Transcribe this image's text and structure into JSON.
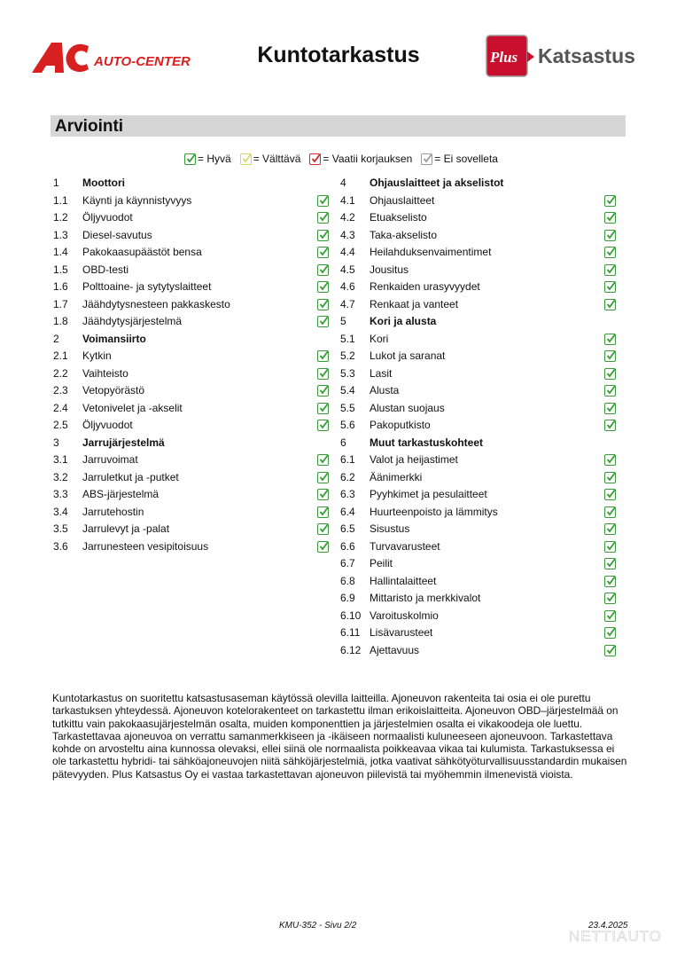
{
  "header": {
    "title": "Kuntotarkastus",
    "logo_left": "AC AUTO-CENTER",
    "logo_right": "Plus Katsastus"
  },
  "section_title": "Arviointi",
  "legend": [
    {
      "label": "= Hyvä",
      "color": "#3a9a3a"
    },
    {
      "label": "= Välttävä",
      "color": "#d7d76a"
    },
    {
      "label": "= Vaatii korjauksen",
      "color": "#d02a2a"
    },
    {
      "label": "= Ei sovelleta",
      "color": "#9a9a9a"
    }
  ],
  "columns": [
    [
      {
        "n": "1",
        "l": "Moottori",
        "h": true
      },
      {
        "n": "1.1",
        "l": "Käynti ja käynnistyvyys",
        "s": "good"
      },
      {
        "n": "1.2",
        "l": "Öljyvuodot",
        "s": "good"
      },
      {
        "n": "1.3",
        "l": "Diesel-savutus",
        "s": "good"
      },
      {
        "n": "1.4",
        "l": "Pakokaasupäästöt bensa",
        "s": "good"
      },
      {
        "n": "1.5",
        "l": "OBD-testi",
        "s": "good"
      },
      {
        "n": "1.6",
        "l": "Polttoaine- ja sytytyslaitteet",
        "s": "good"
      },
      {
        "n": "1.7",
        "l": "Jäähdytysnesteen pakkaskesto",
        "s": "good"
      },
      {
        "n": "1.8",
        "l": "Jäähdytysjärjestelmä",
        "s": "good"
      },
      {
        "n": "2",
        "l": "Voimansiirto",
        "h": true
      },
      {
        "n": "2.1",
        "l": "Kytkin",
        "s": "good"
      },
      {
        "n": "2.2",
        "l": "Vaihteisto",
        "s": "good"
      },
      {
        "n": "2.3",
        "l": "Vetopyörästö",
        "s": "good"
      },
      {
        "n": "2.4",
        "l": "Vetonivelet ja -akselit",
        "s": "good"
      },
      {
        "n": "2.5",
        "l": "Öljyvuodot",
        "s": "good"
      },
      {
        "n": "3",
        "l": "Jarrujärjestelmä",
        "h": true
      },
      {
        "n": "3.1",
        "l": "Jarruvoimat",
        "s": "good"
      },
      {
        "n": "3.2",
        "l": "Jarruletkut ja -putket",
        "s": "good"
      },
      {
        "n": "3.3",
        "l": "ABS-järjestelmä",
        "s": "good"
      },
      {
        "n": "3.4",
        "l": "Jarrutehostin",
        "s": "good"
      },
      {
        "n": "3.5",
        "l": "Jarrulevyt ja -palat",
        "s": "good"
      },
      {
        "n": "3.6",
        "l": "Jarrunesteen vesipitoisuus",
        "s": "good"
      }
    ],
    [
      {
        "n": "4",
        "l": "Ohjauslaitteet ja akselistot",
        "h": true
      },
      {
        "n": "4.1",
        "l": "Ohjauslaitteet",
        "s": "good"
      },
      {
        "n": "4.2",
        "l": "Etuakselisto",
        "s": "good"
      },
      {
        "n": "4.3",
        "l": "Taka-akselisto",
        "s": "good"
      },
      {
        "n": "4.4",
        "l": "Heilahduksenvaimentimet",
        "s": "good"
      },
      {
        "n": "4.5",
        "l": "Jousitus",
        "s": "good"
      },
      {
        "n": "4.6",
        "l": "Renkaiden urasyvyydet",
        "s": "good"
      },
      {
        "n": "4.7",
        "l": "Renkaat ja vanteet",
        "s": "good"
      },
      {
        "n": "5",
        "l": "Kori ja alusta",
        "h": true
      },
      {
        "n": "5.1",
        "l": "Kori",
        "s": "good"
      },
      {
        "n": "5.2",
        "l": "Lukot ja saranat",
        "s": "good"
      },
      {
        "n": "5.3",
        "l": "Lasit",
        "s": "good"
      },
      {
        "n": "5.4",
        "l": "Alusta",
        "s": "good"
      },
      {
        "n": "5.5",
        "l": "Alustan suojaus",
        "s": "good"
      },
      {
        "n": "5.6",
        "l": "Pakoputkisto",
        "s": "good"
      },
      {
        "n": "6",
        "l": "Muut tarkastuskohteet",
        "h": true
      },
      {
        "n": "6.1",
        "l": "Valot ja heijastimet",
        "s": "good"
      },
      {
        "n": "6.2",
        "l": "Äänimerkki",
        "s": "good"
      },
      {
        "n": "6.3",
        "l": "Pyyhkimet ja pesulaitteet",
        "s": "good"
      },
      {
        "n": "6.4",
        "l": "Huurteenpoisto ja lämmitys",
        "s": "good"
      },
      {
        "n": "6.5",
        "l": "Sisustus",
        "s": "good"
      },
      {
        "n": "6.6",
        "l": "Turvavarusteet",
        "s": "good"
      },
      {
        "n": "6.7",
        "l": "Peilit",
        "s": "good"
      },
      {
        "n": "6.8",
        "l": "Hallintalaitteet",
        "s": "good"
      },
      {
        "n": "6.9",
        "l": "Mittaristo ja merkkivalot",
        "s": "good"
      },
      {
        "n": "6.10",
        "l": "Varoituskolmio",
        "s": "good"
      },
      {
        "n": "6.11",
        "l": "Lisävarusteet",
        "s": "good"
      },
      {
        "n": "6.12",
        "l": "Ajettavuus",
        "s": "good"
      }
    ]
  ],
  "disclaimer": "Kuntotarkastus on suoritettu katsastusaseman käytössä olevilla laitteilla. Ajoneuvon rakenteita tai osia ei ole purettu tarkastuksen yhteydessä. Ajoneuvon kotelorakenteet on tarkastettu ilman erikoislaitteita. Ajoneuvon OBD–järjestelmää on tutkittu vain pakokaasujärjestelmän osalta, muiden komponenttien ja järjestelmien osalta ei vikakoodeja ole luettu. Tarkastettavaa ajoneuvoa on verrattu samanmerkkiseen ja -ikäiseen normaalisti kuluneeseen ajoneuvoon. Tarkastettava kohde on arvosteltu aina kunnossa olevaksi, ellei siinä ole normaalista poikkeavaa vikaa tai kulumista. Tarkastuksessa ei ole tarkastettu hybridi- tai sähköajoneuvojen niitä sähköjärjestelmiä, jotka vaativat sähkötyöturvallisuusstandardin mukaisen pätevyyden. Plus Katsastus Oy ei vastaa tarkastettavan ajoneuvon piilevistä tai myöhemmin ilmenevistä vioista.",
  "footer": {
    "page": "KMU-352 - Sivu 2/2",
    "date": "23.4.2025",
    "watermark": "NETTIAUTO"
  }
}
